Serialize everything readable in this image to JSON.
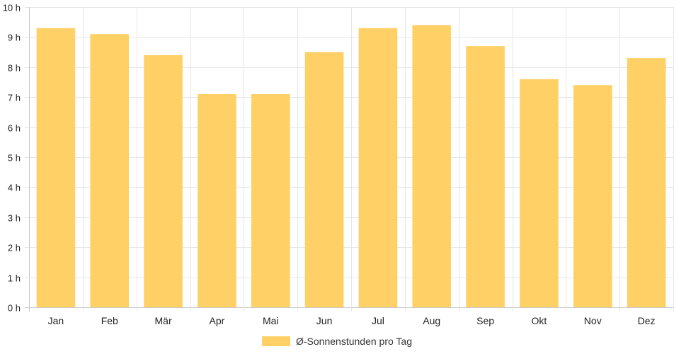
{
  "chart_data": {
    "type": "bar",
    "categories": [
      "Jan",
      "Feb",
      "Mär",
      "Apr",
      "Mai",
      "Jun",
      "Jul",
      "Aug",
      "Sep",
      "Okt",
      "Nov",
      "Dez"
    ],
    "series": [
      {
        "name": "Ø-Sonnenstunden pro Tag",
        "values": [
          9.3,
          9.1,
          8.4,
          7.1,
          7.1,
          8.5,
          9.3,
          9.4,
          8.7,
          7.6,
          7.4,
          8.3
        ],
        "color": "#fed066"
      }
    ],
    "ylim": [
      0,
      10
    ],
    "yticks": [
      0,
      1,
      2,
      3,
      4,
      5,
      6,
      7,
      8,
      9,
      10
    ],
    "ytick_suffix": " h",
    "grid": true,
    "legend_position": "bottom"
  }
}
